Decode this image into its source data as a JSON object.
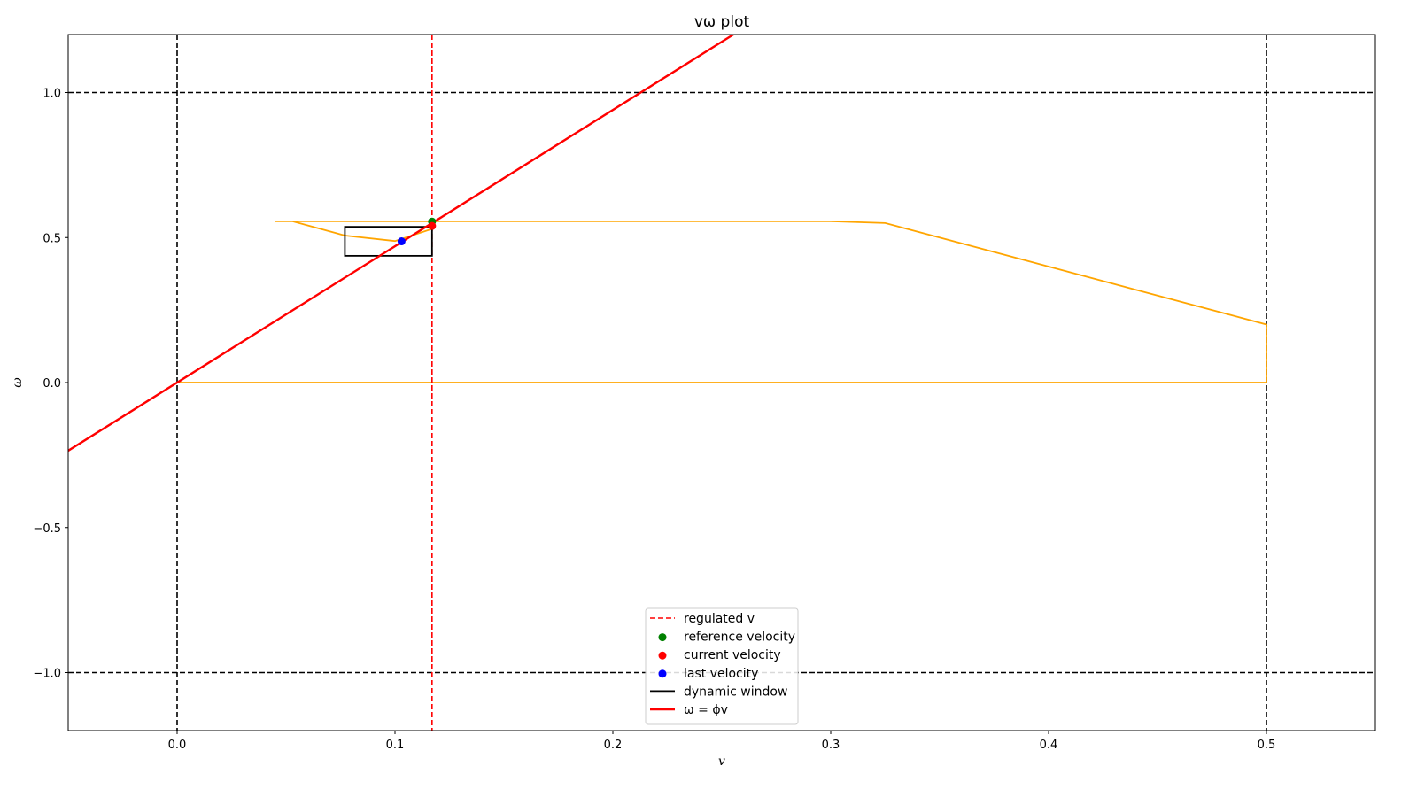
{
  "chart_data": {
    "type": "line",
    "title": "vω plot",
    "xlabel": "v",
    "ylabel": "ω",
    "xlim": [
      -0.05,
      0.55
    ],
    "ylim": [
      -1.2,
      1.2
    ],
    "xticks": [
      0.0,
      0.1,
      0.2,
      0.3,
      0.4,
      0.5
    ],
    "xtick_labels": [
      "0.0",
      "0.1",
      "0.2",
      "0.3",
      "0.4",
      "0.5"
    ],
    "yticks": [
      -1.0,
      -0.5,
      0.0,
      0.5,
      1.0
    ],
    "ytick_labels": [
      "−1.0",
      "−0.5",
      "0.0",
      "0.5",
      "1.0"
    ],
    "grid": false,
    "legend_position": "bottom-center",
    "limit_lines": {
      "vertical": [
        0.0,
        0.5
      ],
      "horizontal": [
        -1.0,
        1.0
      ],
      "color": "#000000",
      "style": "dashed"
    },
    "series": [
      {
        "name": "regulated v",
        "kind": "vline",
        "x": 0.117,
        "color": "#ff0000",
        "style": "dashed"
      },
      {
        "name": "reference velocity",
        "kind": "point",
        "x": 0.117,
        "y": 0.555,
        "color": "#008000"
      },
      {
        "name": "current velocity",
        "kind": "point",
        "x": 0.117,
        "y": 0.54,
        "color": "#ff0000"
      },
      {
        "name": "last velocity",
        "kind": "point",
        "x": 0.103,
        "y": 0.487,
        "color": "#0000ff"
      },
      {
        "name": "dynamic window",
        "kind": "rect",
        "x": [
          0.077,
          0.117
        ],
        "y": [
          0.437,
          0.537
        ],
        "color": "#000000"
      },
      {
        "name": "ω = φv",
        "legend_label": "ω = ϕv",
        "kind": "line",
        "slope": 4.7,
        "color": "#ff0000"
      },
      {
        "name": "",
        "kind": "polyline",
        "color": "#ffa500",
        "points": [
          [
            0.0,
            0.0
          ],
          [
            0.5,
            0.0
          ],
          [
            0.5,
            0.2
          ],
          [
            0.325,
            0.55
          ],
          [
            0.3,
            0.556
          ],
          [
            0.045,
            0.556
          ],
          [
            0.053,
            0.556
          ],
          [
            0.077,
            0.507
          ],
          [
            0.1,
            0.488
          ],
          [
            0.117,
            0.53
          ],
          [
            0.117,
            0.556
          ]
        ]
      }
    ]
  }
}
